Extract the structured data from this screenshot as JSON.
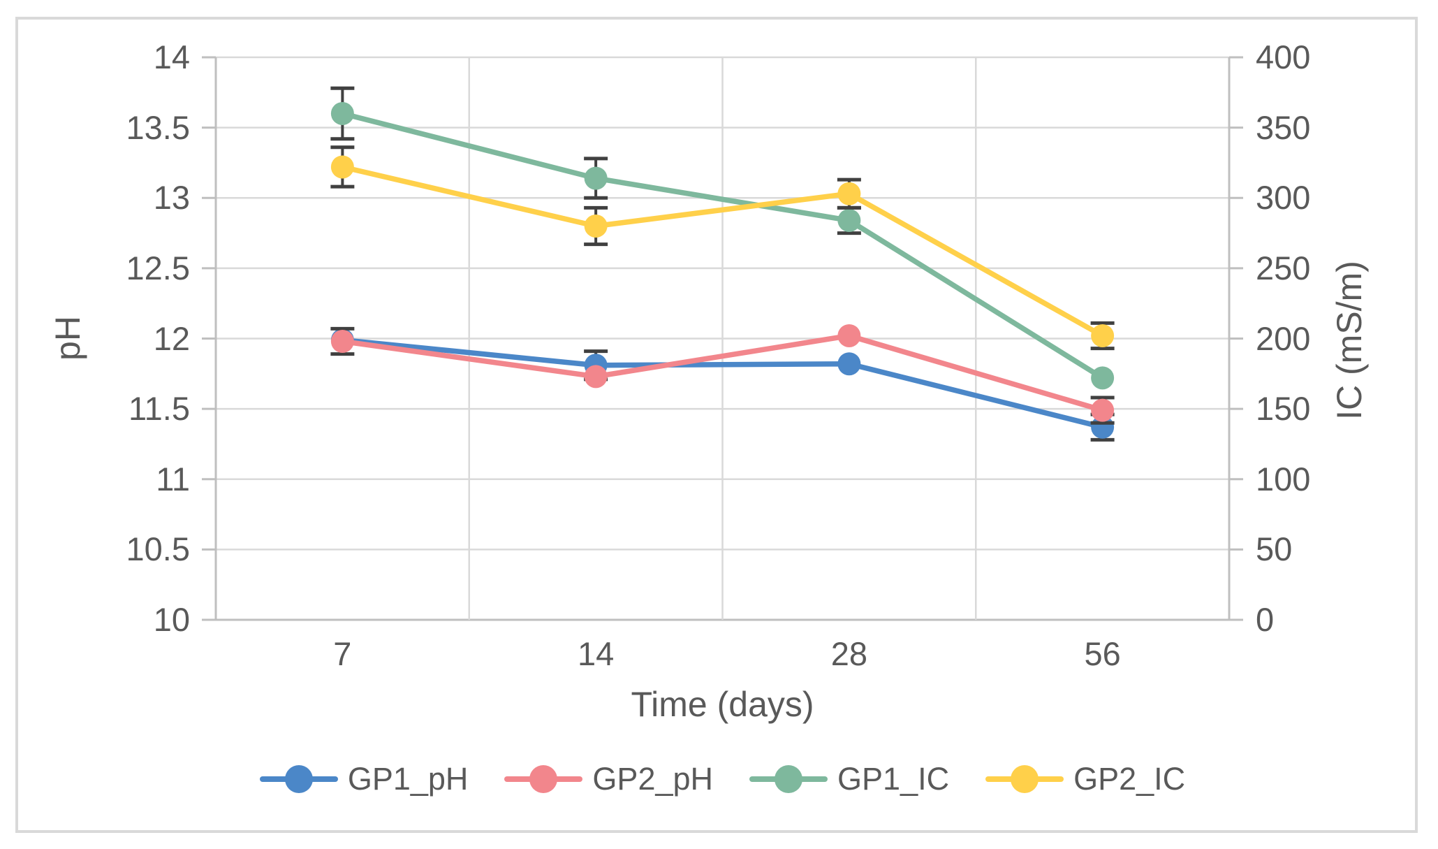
{
  "styles": {
    "text_color": "#595959",
    "gridline_color": "#D9D9D9",
    "axis_line_color": "#BFBFBF",
    "error_bar_color": "#404040",
    "frame_color": "#D9D9D9",
    "background": "#FFFFFF"
  },
  "chart_data": {
    "type": "line",
    "title": "",
    "categories": [
      "7",
      "14",
      "28",
      "56"
    ],
    "xlabel": "Time (days)",
    "ylabel_left": "pH",
    "ylabel_right": "IC (mS/m)",
    "left_axis": {
      "min": 10,
      "max": 14,
      "step": 0.5,
      "tick_labels": [
        "14",
        "13.5",
        "13",
        "12.5",
        "12",
        "11.5",
        "11",
        "10.5",
        "10"
      ]
    },
    "right_axis": {
      "min": 0,
      "max": 400,
      "step": 50,
      "tick_labels": [
        "400",
        "350",
        "300",
        "250",
        "200",
        "150",
        "100",
        "50",
        "0"
      ]
    },
    "grid": true,
    "legend_position": "bottom",
    "series": [
      {
        "name": "GP1_pH",
        "axis": "left",
        "color": "#4B87C8",
        "values": [
          11.99,
          11.81,
          11.82,
          11.37
        ],
        "errors": [
          0,
          0.1,
          0,
          0.09
        ]
      },
      {
        "name": "GP2_pH",
        "axis": "left",
        "color": "#F2868C",
        "values": [
          11.98,
          11.73,
          12.02,
          11.49
        ],
        "errors": [
          0.09,
          0,
          0,
          0.09
        ]
      },
      {
        "name": "GP1_IC",
        "axis": "right",
        "color": "#7EB89D",
        "values": [
          360,
          314,
          284,
          172
        ],
        "errors": [
          18,
          14,
          9,
          0
        ]
      },
      {
        "name": "GP2_IC",
        "axis": "right",
        "color": "#FFD04A",
        "values": [
          322,
          280,
          303,
          202
        ],
        "errors": [
          14,
          13,
          10,
          9
        ]
      }
    ]
  }
}
